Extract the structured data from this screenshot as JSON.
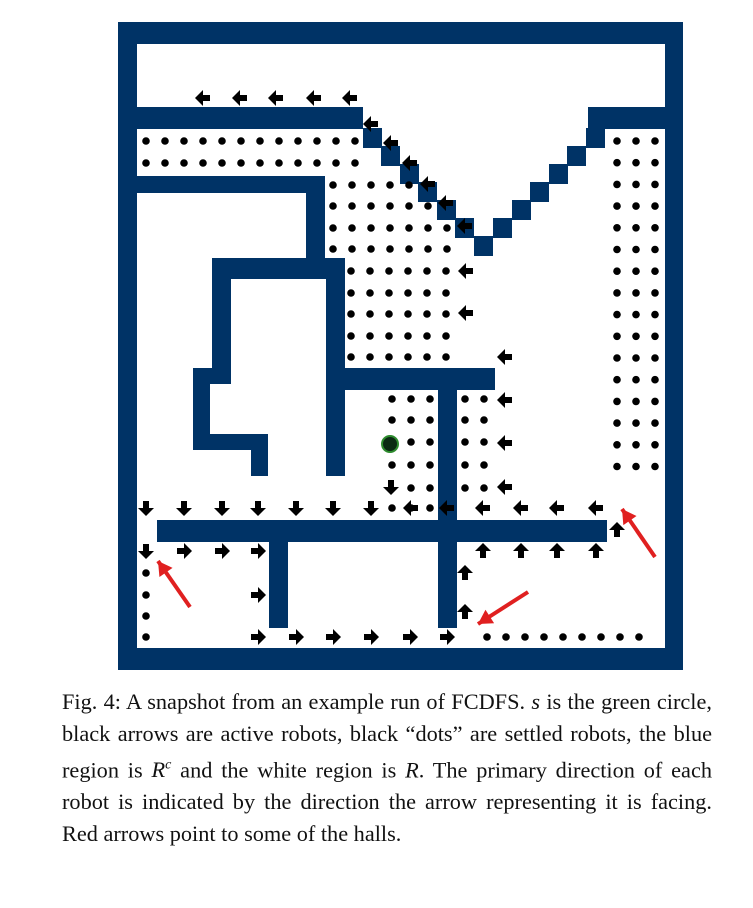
{
  "colors": {
    "obstacle": "#003366",
    "free": "#ffffff",
    "robot": "#000000",
    "source_fill": "#0b2a12",
    "source_ring": "#2e8b2e",
    "pointer": "#e02020"
  },
  "figure": {
    "marks": {
      "active_robot": "arrow-icon",
      "settled_robot": "dot-icon",
      "source": "green-circle",
      "hall_pointer": "red-arrow"
    }
  },
  "caption": {
    "label": "Fig. 4:",
    "part1": " A snapshot from an example run of FCDFS. ",
    "sym_s": "s",
    "part2": " is the green circle, black arrows are active robots, black “dots” are settled robots, the blue region is ",
    "sym_Rc_base": "R",
    "sym_Rc_sup": "c",
    "part3": " and the white region is ",
    "sym_R": "R",
    "part4": ". The primary direction of each robot is indicated by the direction the arrow representing it is facing. Red arrows point to some of the halls."
  }
}
